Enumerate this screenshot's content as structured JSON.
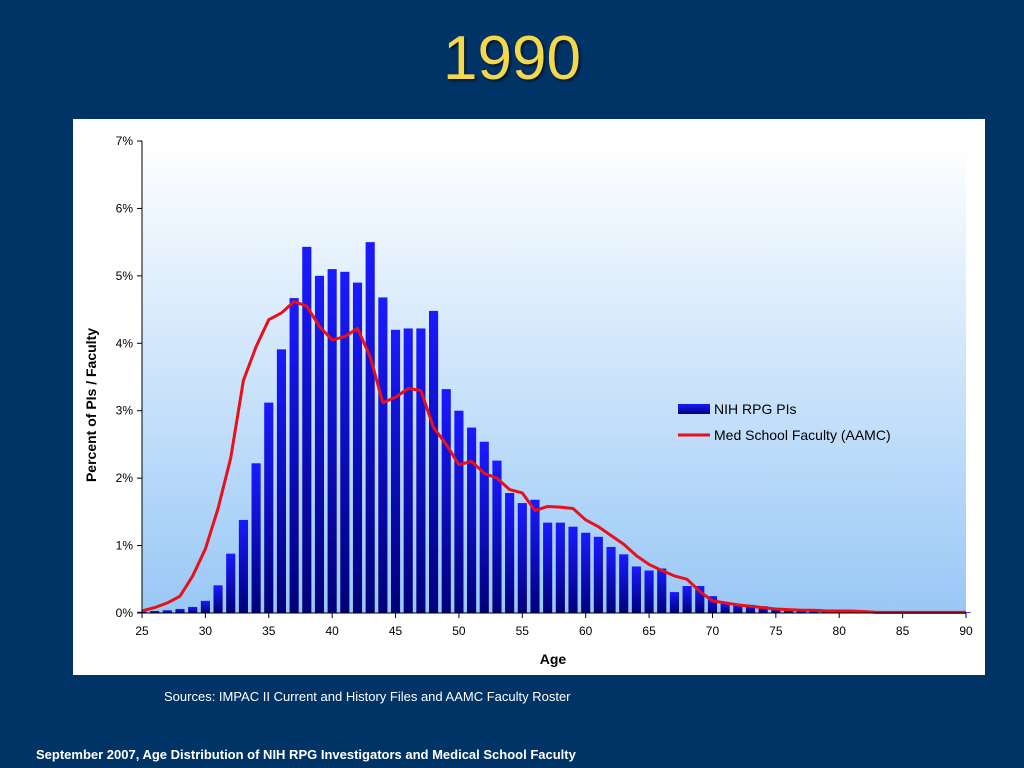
{
  "slide": {
    "title": "1990",
    "sources": "Sources:  IMPAC II Current and History Files and AAMC Faculty Roster",
    "footer": "September 2007, Age Distribution of NIH RPG Investigators and Medical School Faculty"
  },
  "colors": {
    "background": "#003366",
    "title": "#f5d84a",
    "bars": "#1414e0",
    "line": "#e8101a"
  },
  "chart_data": {
    "type": "bar",
    "title": "",
    "xlabel": "Age",
    "ylabel": "Percent of PIs / Faculty",
    "ylim": [
      0,
      7
    ],
    "xlim": [
      25,
      90
    ],
    "x_ticks": [
      25,
      30,
      35,
      40,
      45,
      50,
      55,
      60,
      65,
      70,
      75,
      80,
      85,
      90
    ],
    "y_ticks": [
      "0%",
      "1%",
      "2%",
      "3%",
      "4%",
      "5%",
      "6%",
      "7%"
    ],
    "grid": false,
    "legend_position": "right",
    "series": [
      {
        "name": "NIH RPG PIs",
        "type": "bar",
        "x": [
          25,
          26,
          27,
          28,
          29,
          30,
          31,
          32,
          33,
          34,
          35,
          36,
          37,
          38,
          39,
          40,
          41,
          42,
          43,
          44,
          45,
          46,
          47,
          48,
          49,
          50,
          51,
          52,
          53,
          54,
          55,
          56,
          57,
          58,
          59,
          60,
          61,
          62,
          63,
          64,
          65,
          66,
          67,
          68,
          69,
          70,
          71,
          72,
          73,
          74,
          75,
          76,
          77,
          78,
          79,
          80,
          81,
          82,
          83,
          84,
          85,
          86,
          87,
          88,
          89,
          90
        ],
        "values": [
          0.02,
          0.03,
          0.04,
          0.06,
          0.09,
          0.18,
          0.41,
          0.88,
          1.38,
          2.22,
          3.12,
          3.91,
          4.67,
          5.43,
          5.0,
          5.1,
          5.06,
          4.9,
          5.5,
          4.68,
          4.2,
          4.22,
          4.22,
          4.48,
          3.32,
          3.0,
          2.75,
          2.54,
          2.26,
          1.78,
          1.63,
          1.68,
          1.34,
          1.34,
          1.28,
          1.19,
          1.13,
          0.98,
          0.87,
          0.69,
          0.63,
          0.66,
          0.31,
          0.4,
          0.4,
          0.25,
          0.15,
          0.13,
          0.12,
          0.1,
          0.06,
          0.05,
          0.04,
          0.03,
          0.03,
          0.02,
          0.02,
          0.02,
          0.01,
          0.01,
          0.01,
          0.01,
          0.01,
          0.01,
          0.01,
          0.01
        ]
      },
      {
        "name": "Med School Faculty (AAMC)",
        "type": "line",
        "x": [
          25,
          26,
          27,
          28,
          29,
          30,
          31,
          32,
          33,
          34,
          35,
          36,
          37,
          38,
          39,
          40,
          41,
          42,
          43,
          44,
          45,
          46,
          47,
          48,
          49,
          50,
          51,
          52,
          53,
          54,
          55,
          56,
          57,
          58,
          59,
          60,
          61,
          62,
          63,
          64,
          65,
          66,
          67,
          68,
          69,
          70,
          71,
          72,
          73,
          74,
          75,
          76,
          77,
          78,
          79,
          80,
          81,
          82,
          83,
          84,
          85,
          86,
          87,
          88,
          89,
          90
        ],
        "values": [
          0.03,
          0.08,
          0.15,
          0.25,
          0.55,
          0.95,
          1.55,
          2.3,
          3.45,
          3.95,
          4.35,
          4.45,
          4.62,
          4.55,
          4.25,
          4.05,
          4.1,
          4.22,
          3.8,
          3.12,
          3.2,
          3.33,
          3.3,
          2.75,
          2.5,
          2.2,
          2.25,
          2.07,
          2.0,
          1.83,
          1.78,
          1.52,
          1.58,
          1.57,
          1.55,
          1.38,
          1.28,
          1.15,
          1.02,
          0.85,
          0.72,
          0.63,
          0.55,
          0.5,
          0.32,
          0.18,
          0.15,
          0.12,
          0.1,
          0.08,
          0.06,
          0.05,
          0.04,
          0.04,
          0.03,
          0.03,
          0.03,
          0.02,
          0.01,
          0.01,
          0.01,
          0.01,
          0.01,
          0.01,
          0.01,
          0.01
        ]
      }
    ]
  }
}
